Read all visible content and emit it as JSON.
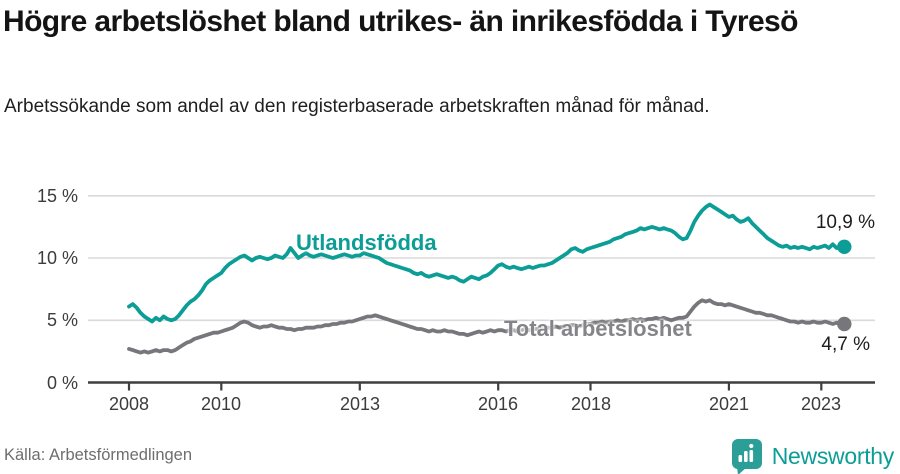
{
  "header": {
    "title": "Högre arbetslöshet bland utrikes- än inrikesfödda i Tyresö",
    "subtitle": "Arbetssökande som andel av den registerbaserade arbetskraften månad för månad."
  },
  "chart_data": {
    "type": "line",
    "title": "Högre arbetslöshet bland utrikes- än inrikesfödda i Tyresö",
    "x_unit": "month",
    "x_start": "2008-01",
    "x_end": "2023-07",
    "ylim": [
      0,
      16
    ],
    "grid": "horizontal",
    "y_ticks": [
      0,
      5,
      10,
      15
    ],
    "y_tick_labels": [
      "0 %",
      "5 %",
      "10 %",
      "15 %"
    ],
    "x_ticks": [
      2008,
      2010,
      2013,
      2016,
      2018,
      2021,
      2023
    ],
    "x_tick_labels": [
      "2008",
      "2010",
      "2013",
      "2016",
      "2018",
      "2021",
      "2023"
    ],
    "series": [
      {
        "name": "Utlandsfödda",
        "color": "#0c9e96",
        "label_color": "#0c9e96",
        "end_label": "10,9 %",
        "end_value": 10.9,
        "values": [
          6.1,
          6.3,
          6.0,
          5.6,
          5.3,
          5.1,
          4.9,
          5.2,
          5.0,
          5.3,
          5.1,
          5.0,
          5.1,
          5.4,
          5.8,
          6.2,
          6.5,
          6.7,
          7.0,
          7.4,
          7.9,
          8.2,
          8.4,
          8.6,
          8.8,
          9.2,
          9.5,
          9.7,
          9.9,
          10.1,
          10.2,
          10.0,
          9.8,
          10.0,
          10.1,
          10.0,
          9.9,
          10.0,
          10.2,
          10.1,
          10.0,
          10.3,
          10.8,
          10.4,
          10.0,
          10.2,
          10.4,
          10.2,
          10.1,
          10.2,
          10.3,
          10.2,
          10.1,
          10.0,
          10.1,
          10.2,
          10.3,
          10.2,
          10.1,
          10.2,
          10.2,
          10.4,
          10.3,
          10.2,
          10.1,
          10.0,
          9.8,
          9.6,
          9.5,
          9.4,
          9.3,
          9.2,
          9.1,
          9.0,
          8.8,
          8.7,
          8.8,
          8.6,
          8.5,
          8.6,
          8.7,
          8.6,
          8.5,
          8.4,
          8.5,
          8.4,
          8.2,
          8.1,
          8.3,
          8.5,
          8.4,
          8.3,
          8.5,
          8.6,
          8.8,
          9.1,
          9.4,
          9.5,
          9.3,
          9.2,
          9.3,
          9.2,
          9.1,
          9.2,
          9.3,
          9.2,
          9.3,
          9.4,
          9.4,
          9.5,
          9.6,
          9.8,
          10.0,
          10.2,
          10.4,
          10.7,
          10.8,
          10.6,
          10.5,
          10.7,
          10.8,
          10.9,
          11.0,
          11.1,
          11.2,
          11.3,
          11.5,
          11.6,
          11.7,
          11.9,
          12.0,
          12.1,
          12.2,
          12.4,
          12.3,
          12.4,
          12.5,
          12.4,
          12.3,
          12.4,
          12.3,
          12.2,
          12.0,
          11.7,
          11.5,
          11.6,
          12.2,
          12.9,
          13.4,
          13.8,
          14.1,
          14.3,
          14.1,
          13.9,
          13.7,
          13.5,
          13.3,
          13.4,
          13.1,
          12.9,
          13.0,
          13.2,
          12.8,
          12.5,
          12.2,
          11.9,
          11.6,
          11.4,
          11.2,
          11.0,
          10.9,
          11.0,
          10.8,
          10.9,
          10.8,
          10.9,
          10.8,
          10.7,
          10.9,
          10.8,
          10.9,
          11.0,
          10.8,
          11.1,
          10.8,
          10.9,
          10.9
        ]
      },
      {
        "name": "Total arbetslöshet",
        "color": "#77777b",
        "label_color": "#84848a",
        "end_label": "4,7 %",
        "end_value": 4.7,
        "values": [
          2.7,
          2.6,
          2.5,
          2.4,
          2.5,
          2.4,
          2.5,
          2.6,
          2.5,
          2.6,
          2.6,
          2.5,
          2.6,
          2.8,
          3.0,
          3.2,
          3.3,
          3.5,
          3.6,
          3.7,
          3.8,
          3.9,
          4.0,
          4.0,
          4.1,
          4.2,
          4.3,
          4.4,
          4.6,
          4.8,
          4.9,
          4.8,
          4.6,
          4.5,
          4.4,
          4.5,
          4.5,
          4.6,
          4.5,
          4.4,
          4.4,
          4.3,
          4.3,
          4.2,
          4.3,
          4.3,
          4.4,
          4.4,
          4.4,
          4.5,
          4.5,
          4.6,
          4.6,
          4.7,
          4.7,
          4.8,
          4.8,
          4.9,
          4.9,
          5.0,
          5.1,
          5.2,
          5.3,
          5.3,
          5.4,
          5.3,
          5.2,
          5.1,
          5.0,
          4.9,
          4.8,
          4.7,
          4.6,
          4.5,
          4.4,
          4.3,
          4.3,
          4.2,
          4.1,
          4.2,
          4.1,
          4.1,
          4.2,
          4.1,
          4.1,
          4.0,
          3.9,
          3.9,
          3.8,
          3.9,
          4.0,
          4.1,
          4.0,
          4.1,
          4.2,
          4.1,
          4.2,
          4.2,
          4.1,
          4.2,
          4.2,
          4.1,
          4.2,
          4.3,
          4.2,
          4.3,
          4.3,
          4.4,
          4.3,
          4.4,
          4.4,
          4.5,
          4.4,
          4.5,
          4.5,
          4.6,
          4.6,
          4.5,
          4.6,
          4.7,
          4.7,
          4.8,
          4.8,
          4.9,
          4.8,
          4.9,
          4.9,
          5.0,
          4.9,
          5.0,
          5.0,
          5.1,
          5.0,
          5.1,
          5.0,
          5.1,
          5.1,
          5.2,
          5.1,
          5.2,
          5.1,
          5.0,
          5.1,
          5.2,
          5.2,
          5.3,
          5.7,
          6.1,
          6.4,
          6.6,
          6.5,
          6.6,
          6.4,
          6.3,
          6.3,
          6.2,
          6.3,
          6.2,
          6.1,
          6.0,
          5.9,
          5.8,
          5.7,
          5.6,
          5.6,
          5.5,
          5.4,
          5.4,
          5.3,
          5.2,
          5.1,
          5.0,
          4.9,
          4.9,
          4.8,
          4.9,
          4.8,
          4.8,
          4.9,
          4.8,
          4.8,
          4.9,
          4.8,
          4.7,
          4.8,
          4.7,
          4.7
        ]
      }
    ]
  },
  "colors": {
    "accent_teal": "#0c9e96",
    "series_gray": "#77777b",
    "grid": "#dadada",
    "axis": "#3f3f41",
    "title_text": "#141414",
    "source_text": "#6e6e6e"
  },
  "footer": {
    "source": "Källa: Arbetsförmedlingen",
    "brand": "Newsworthy"
  }
}
